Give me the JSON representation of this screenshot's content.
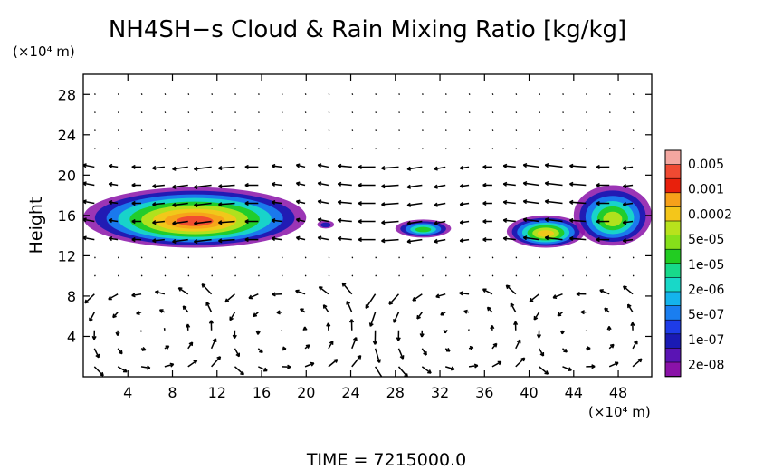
{
  "chart_data": {
    "type": "heatmap",
    "title": "NH4SH−s Cloud & Rain Mixing Ratio [kg/kg]",
    "ylabel": "Height",
    "y_unit": "(×10⁴ m)",
    "x_unit": "(×10⁴ m)",
    "footer": "TIME  =  7215000.0",
    "xlim": [
      0,
      51
    ],
    "ylim": [
      0,
      30
    ],
    "x_ticks": [
      4,
      8,
      12,
      16,
      20,
      24,
      28,
      32,
      36,
      40,
      44,
      48
    ],
    "y_ticks": [
      4,
      8,
      12,
      16,
      20,
      24,
      28
    ],
    "colorbar": {
      "labels": [
        "0.005",
        "0.001",
        "0.0002",
        "5e-05",
        "1e-05",
        "2e-06",
        "5e-07",
        "1e-07",
        "2e-08"
      ],
      "colors": [
        "#f4a7a0",
        "#f04a32",
        "#e8200c",
        "#f7a11a",
        "#f4c61a",
        "#b8e21c",
        "#86e01a",
        "#22cc22",
        "#17d98a",
        "#18d8c8",
        "#14b4ec",
        "#1a7ef0",
        "#1e3ce8",
        "#1a1ab4",
        "#5a14b4",
        "#8a12a8"
      ]
    },
    "cloud_blobs": [
      {
        "x": [
          0,
          20
        ],
        "y": [
          12.8,
          18.8
        ],
        "peak": "0.0002"
      },
      {
        "x": [
          21,
          22.5
        ],
        "y": [
          14.7,
          15.5
        ],
        "peak": "2e-08"
      },
      {
        "x": [
          28,
          33
        ],
        "y": [
          13.8,
          15.6
        ],
        "peak": "2e-06"
      },
      {
        "x": [
          38,
          45
        ],
        "y": [
          12.8,
          16.0
        ],
        "peak": "5e-05"
      },
      {
        "x": [
          44,
          51
        ],
        "y": [
          13.0,
          19.0
        ],
        "peak": "1e-05"
      }
    ],
    "wind_vectors": "2D velocity field shown as arrows on a regular grid"
  }
}
